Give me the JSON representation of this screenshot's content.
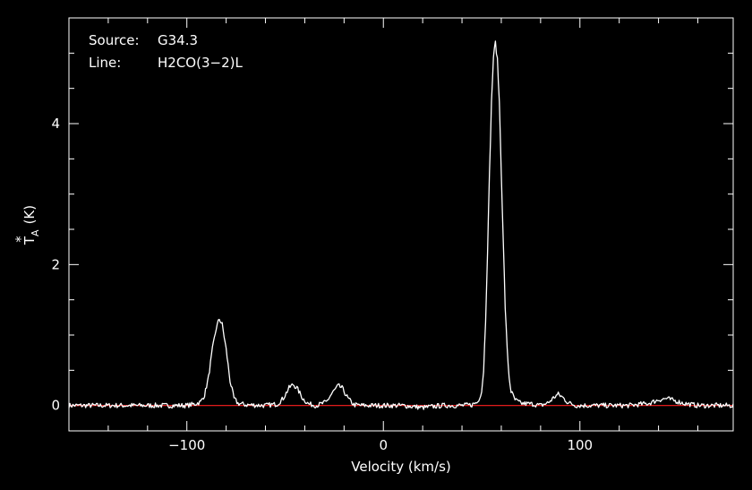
{
  "chart_data": {
    "type": "line",
    "title": "",
    "xlabel": "Velocity (km/s)",
    "ylabel": "T*A (K)",
    "ylabel_main": "T",
    "ylabel_sup": "*",
    "ylabel_sub": "A",
    "ylabel_unit": "(K)",
    "xlim": [
      -160,
      178
    ],
    "ylim": [
      -0.36,
      5.5
    ],
    "x_ticks": [
      -100,
      0,
      100
    ],
    "x_tick_labels": [
      "−100",
      "0",
      "100"
    ],
    "y_ticks": [
      0,
      2,
      4
    ],
    "y_tick_labels": [
      "0",
      "2",
      "4"
    ],
    "x_minor_step": 20,
    "y_minor_step": 0.5,
    "grid": false,
    "annotations": {
      "source_label": "Source:",
      "source_value": "G34.3",
      "line_label": "Line:",
      "line_value": "H2CO(3−2)L"
    },
    "baseline": {
      "y": 0,
      "color": "#ff2020"
    },
    "series": [
      {
        "color": "#ffffff",
        "points": [
          [
            -160,
            0.0
          ],
          [
            -150,
            0.0
          ],
          [
            -140,
            0.0
          ],
          [
            -130,
            0.0
          ],
          [
            -120,
            0.0
          ],
          [
            -110,
            0.0
          ],
          [
            -100,
            0.0
          ],
          [
            -96,
            0.02
          ],
          [
            -93,
            0.05
          ],
          [
            -91,
            0.15
          ],
          [
            -89,
            0.4
          ],
          [
            -87,
            0.8
          ],
          [
            -85,
            1.1
          ],
          [
            -83.5,
            1.23
          ],
          [
            -82,
            1.15
          ],
          [
            -80,
            0.8
          ],
          [
            -78,
            0.35
          ],
          [
            -76,
            0.1
          ],
          [
            -74,
            0.03
          ],
          [
            -70,
            0.01
          ],
          [
            -60,
            0.0
          ],
          [
            -54,
            0.02
          ],
          [
            -51,
            0.1
          ],
          [
            -48,
            0.25
          ],
          [
            -46,
            0.3
          ],
          [
            -44,
            0.25
          ],
          [
            -41,
            0.1
          ],
          [
            -38,
            0.02
          ],
          [
            -34,
            0.0
          ],
          [
            -29,
            0.05
          ],
          [
            -26,
            0.18
          ],
          [
            -23,
            0.28
          ],
          [
            -21,
            0.25
          ],
          [
            -18,
            0.1
          ],
          [
            -15,
            0.01
          ],
          [
            -10,
            0.0
          ],
          [
            0,
            0.0
          ],
          [
            10,
            0.0
          ],
          [
            20,
            -0.03
          ],
          [
            30,
            0.0
          ],
          [
            40,
            0.0
          ],
          [
            45,
            0.01
          ],
          [
            48,
            0.05
          ],
          [
            50,
            0.2
          ],
          [
            51,
            0.5
          ],
          [
            52,
            1.2
          ],
          [
            53,
            2.2
          ],
          [
            54,
            3.3
          ],
          [
            55,
            4.3
          ],
          [
            56,
            4.95
          ],
          [
            57,
            5.15
          ],
          [
            58,
            4.9
          ],
          [
            59,
            4.3
          ],
          [
            60,
            3.3
          ],
          [
            61,
            2.3
          ],
          [
            62,
            1.4
          ],
          [
            63,
            0.8
          ],
          [
            64,
            0.4
          ],
          [
            65,
            0.2
          ],
          [
            67,
            0.08
          ],
          [
            70,
            0.03
          ],
          [
            76,
            0.02
          ],
          [
            80,
            0.0
          ],
          [
            84,
            0.04
          ],
          [
            87,
            0.12
          ],
          [
            89,
            0.16
          ],
          [
            91,
            0.12
          ],
          [
            94,
            0.04
          ],
          [
            98,
            0.0
          ],
          [
            110,
            0.0
          ],
          [
            125,
            0.0
          ],
          [
            135,
            0.03
          ],
          [
            140,
            0.08
          ],
          [
            144,
            0.1
          ],
          [
            148,
            0.07
          ],
          [
            153,
            0.03
          ],
          [
            160,
            0.0
          ],
          [
            170,
            0.0
          ],
          [
            178,
            0.0
          ]
        ]
      }
    ]
  }
}
